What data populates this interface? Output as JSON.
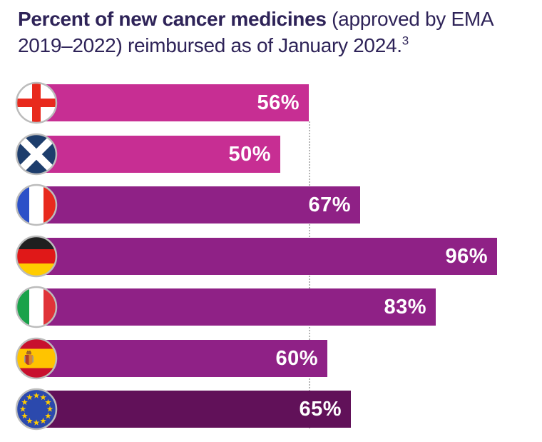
{
  "page": {
    "background": "#ffffff"
  },
  "title": {
    "bold": "Percent of new cancer medicines",
    "line1_rest": " (approved by EMA",
    "line2": "2019–2022) reimbursed as of January 2024.",
    "superscript": "3",
    "color": "#2e2358"
  },
  "chart_data": {
    "type": "bar",
    "orientation": "horizontal",
    "title": "Percent of new cancer medicines (approved by EMA 2019–2022) reimbursed as of January 2024.",
    "footnote_marker": "3",
    "categories": [
      "England",
      "Scotland",
      "France",
      "Germany",
      "Italy",
      "Spain",
      "European Union"
    ],
    "values": [
      56,
      50,
      67,
      96,
      83,
      60,
      65
    ],
    "value_labels": [
      "56%",
      "50%",
      "67%",
      "96%",
      "83%",
      "60%",
      "65%"
    ],
    "bar_colors": [
      "#c72e93",
      "#c72e93",
      "#8f2186",
      "#8f2186",
      "#8f2186",
      "#8f2186",
      "#611159"
    ],
    "flag_icons": [
      "england-flag-icon",
      "scotland-flag-icon",
      "france-flag-icon",
      "germany-flag-icon",
      "italy-flag-icon",
      "spain-flag-icon",
      "eu-flag-icon"
    ],
    "xlim": [
      0,
      100
    ],
    "grid": false,
    "legend": false,
    "value_label_color": "#ffffff",
    "reference_line": {
      "value": 56,
      "color": "#b5b5b5",
      "style": "dotted"
    }
  }
}
